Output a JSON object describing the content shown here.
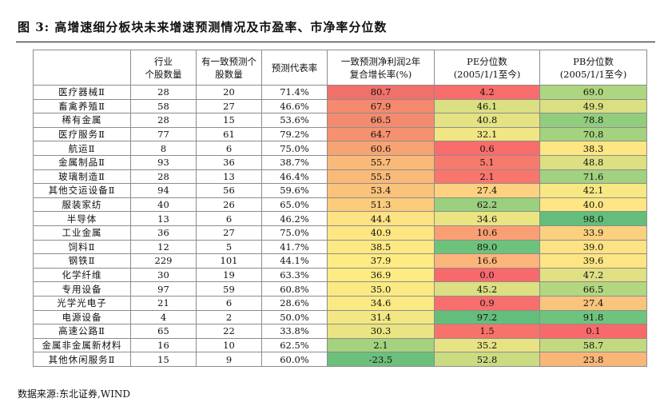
{
  "title": "图 3:  高增速细分板块未来增速预测情况及市盈率、市净率分位数",
  "headers": [
    "",
    "行业个股数量",
    "有一致预测个股数量",
    "预测代表率",
    "一致预测净利润2年复合增长率(%)",
    "PE分位数(2005/1/1至今)",
    "PB分位数(2005/1/1至今)"
  ],
  "header_lines": [
    [
      ""
    ],
    [
      "行业",
      "个股数量"
    ],
    [
      "有一致预测个",
      "股数量"
    ],
    [
      "预测代表率"
    ],
    [
      "一致预测净利润2年",
      "复合增长率(%)"
    ],
    [
      "PE分位数",
      "(2005/1/1至今)"
    ],
    [
      "PB分位数",
      "(2005/1/1至今)"
    ]
  ],
  "rows": [
    {
      "name": "医疗器械Ⅱ",
      "count": "28",
      "forecast": "20",
      "rate": "71.4%",
      "growth": "80.7",
      "pe": "4.2",
      "pb": "69.0"
    },
    {
      "name": "畜禽养殖Ⅱ",
      "count": "58",
      "forecast": "27",
      "rate": "46.6%",
      "growth": "67.9",
      "pe": "46.1",
      "pb": "49.9"
    },
    {
      "name": "稀有金属",
      "count": "28",
      "forecast": "15",
      "rate": "53.6%",
      "growth": "66.5",
      "pe": "40.8",
      "pb": "78.8"
    },
    {
      "name": "医疗服务Ⅱ",
      "count": "77",
      "forecast": "61",
      "rate": "79.2%",
      "growth": "64.7",
      "pe": "32.1",
      "pb": "70.8"
    },
    {
      "name": "航运Ⅱ",
      "count": "8",
      "forecast": "6",
      "rate": "75.0%",
      "growth": "60.6",
      "pe": "0.6",
      "pb": "38.3"
    },
    {
      "name": "金属制品Ⅱ",
      "count": "93",
      "forecast": "36",
      "rate": "38.7%",
      "growth": "55.7",
      "pe": "5.1",
      "pb": "48.8"
    },
    {
      "name": "玻璃制造Ⅱ",
      "count": "28",
      "forecast": "13",
      "rate": "46.4%",
      "growth": "55.5",
      "pe": "2.1",
      "pb": "71.6"
    },
    {
      "name": "其他交运设备Ⅱ",
      "count": "94",
      "forecast": "56",
      "rate": "59.6%",
      "growth": "53.4",
      "pe": "27.4",
      "pb": "42.1"
    },
    {
      "name": "服装家纺",
      "count": "40",
      "forecast": "26",
      "rate": "65.0%",
      "growth": "51.3",
      "pe": "62.2",
      "pb": "40.0"
    },
    {
      "name": "半导体",
      "count": "13",
      "forecast": "6",
      "rate": "46.2%",
      "growth": "44.4",
      "pe": "34.6",
      "pb": "98.0"
    },
    {
      "name": "工业金属",
      "count": "36",
      "forecast": "27",
      "rate": "75.0%",
      "growth": "40.9",
      "pe": "10.6",
      "pb": "33.9"
    },
    {
      "name": "饲料Ⅱ",
      "count": "12",
      "forecast": "5",
      "rate": "41.7%",
      "growth": "38.5",
      "pe": "89.0",
      "pb": "39.0"
    },
    {
      "name": "钢铁Ⅱ",
      "count": "229",
      "forecast": "101",
      "rate": "44.1%",
      "growth": "37.9",
      "pe": "16.6",
      "pb": "39.6"
    },
    {
      "name": "化学纤维",
      "count": "30",
      "forecast": "19",
      "rate": "63.3%",
      "growth": "36.9",
      "pe": "0.0",
      "pb": "47.2"
    },
    {
      "name": "专用设备",
      "count": "97",
      "forecast": "59",
      "rate": "60.8%",
      "growth": "35.0",
      "pe": "45.2",
      "pb": "66.5"
    },
    {
      "name": "光学光电子",
      "count": "21",
      "forecast": "6",
      "rate": "28.6%",
      "growth": "34.6",
      "pe": "0.9",
      "pb": "27.4"
    },
    {
      "name": "电源设备",
      "count": "4",
      "forecast": "2",
      "rate": "50.0%",
      "growth": "31.4",
      "pe": "97.2",
      "pb": "91.8"
    },
    {
      "name": "高速公路Ⅱ",
      "count": "65",
      "forecast": "22",
      "rate": "33.8%",
      "growth": "30.3",
      "pe": "1.5",
      "pb": "0.1"
    },
    {
      "name": "金属非金属新材料",
      "count": "16",
      "forecast": "10",
      "rate": "62.5%",
      "growth": "2.1",
      "pe": "35.2",
      "pb": "58.7"
    },
    {
      "name": "其他休闲服务Ⅱ",
      "count": "15",
      "forecast": "9",
      "rate": "60.0%",
      "growth": "-23.5",
      "pe": "52.8",
      "pb": "23.8"
    }
  ],
  "colors": {
    "growth": [
      "#f0706a",
      "#f4896f",
      "#f48b6e",
      "#f59170",
      "#f7a473",
      "#f9b978",
      "#f9ba79",
      "#fac27a",
      "#fbcc7c",
      "#fde383",
      "#fee683",
      "#fde984",
      "#feeb84",
      "#feeb84",
      "#fbea84",
      "#faea84",
      "#f3e783",
      "#eae482",
      "#a4d27f",
      "#6cc07b"
    ],
    "pe": [
      "#f86d6b",
      "#dadf82",
      "#e4e283",
      "#f0e684",
      "#f86d6b",
      "#f87a6d",
      "#f8766d",
      "#fcd17f",
      "#9bd07e",
      "#eae483",
      "#fa9f74",
      "#6ec37c",
      "#fbb479",
      "#f8696b",
      "#dcdf82",
      "#f86e6c",
      "#63be7b",
      "#f8726c",
      "#e8e382",
      "#cbdb81"
    ],
    "pb": [
      "#aed580",
      "#d9df82",
      "#92cd7e",
      "#a4d27f",
      "#fde683",
      "#dcdf82",
      "#a2d17f",
      "#f7e884",
      "#fde683",
      "#63be7b",
      "#fbd07f",
      "#fde383",
      "#fde583",
      "#e1e082",
      "#b3d780",
      "#f9c47c",
      "#6fc37c",
      "#f8696b",
      "#c3d980",
      "#f8b679"
    ]
  },
  "source": "数据来源:东北证券,WIND"
}
